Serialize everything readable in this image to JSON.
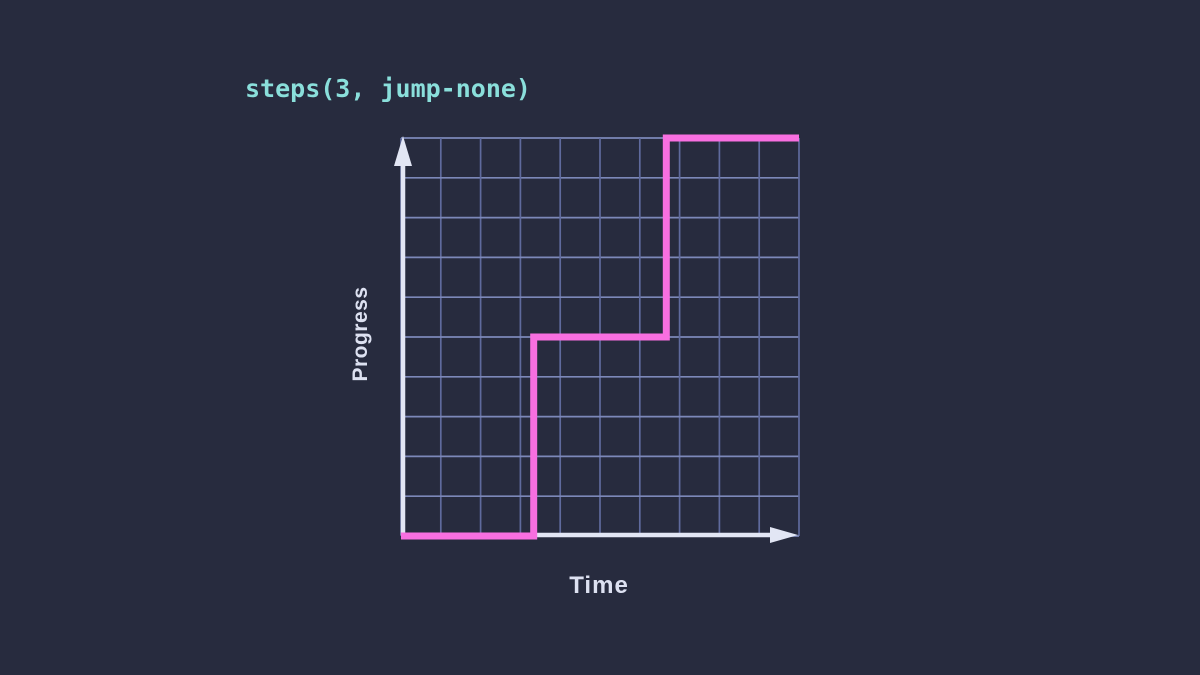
{
  "title": "steps(3, jump-none)",
  "colors": {
    "background": "#272b3e",
    "title_text": "#8adfdb",
    "axis": "#e2e6f4",
    "step_line": "#f86fe0",
    "grid_vertical": "#5f6a9d",
    "grid_horizontal": "#7c88b9",
    "axis_labels": "#dde1f1"
  },
  "chart_data": {
    "type": "line",
    "subtype": "step-function",
    "title": "steps(3, jump-none)",
    "xlabel": "Time",
    "ylabel": "Progress",
    "xlim": [
      0,
      1
    ],
    "ylim": [
      0,
      1
    ],
    "grid": true,
    "grid_divisions": 10,
    "legend": "none",
    "step_function": {
      "css_value": "steps(3, jump-none)",
      "steps": 3,
      "jump_term": "jump-none",
      "levels": [
        0,
        0.5,
        1
      ],
      "jump_times": [
        0.3333,
        0.6667
      ]
    },
    "series": [
      {
        "name": "steps(3, jump-none)",
        "points": [
          [
            0,
            0
          ],
          [
            0.3333,
            0
          ],
          [
            0.3333,
            0.5
          ],
          [
            0.6667,
            0.5
          ],
          [
            0.6667,
            1
          ],
          [
            1,
            1
          ]
        ]
      }
    ]
  }
}
